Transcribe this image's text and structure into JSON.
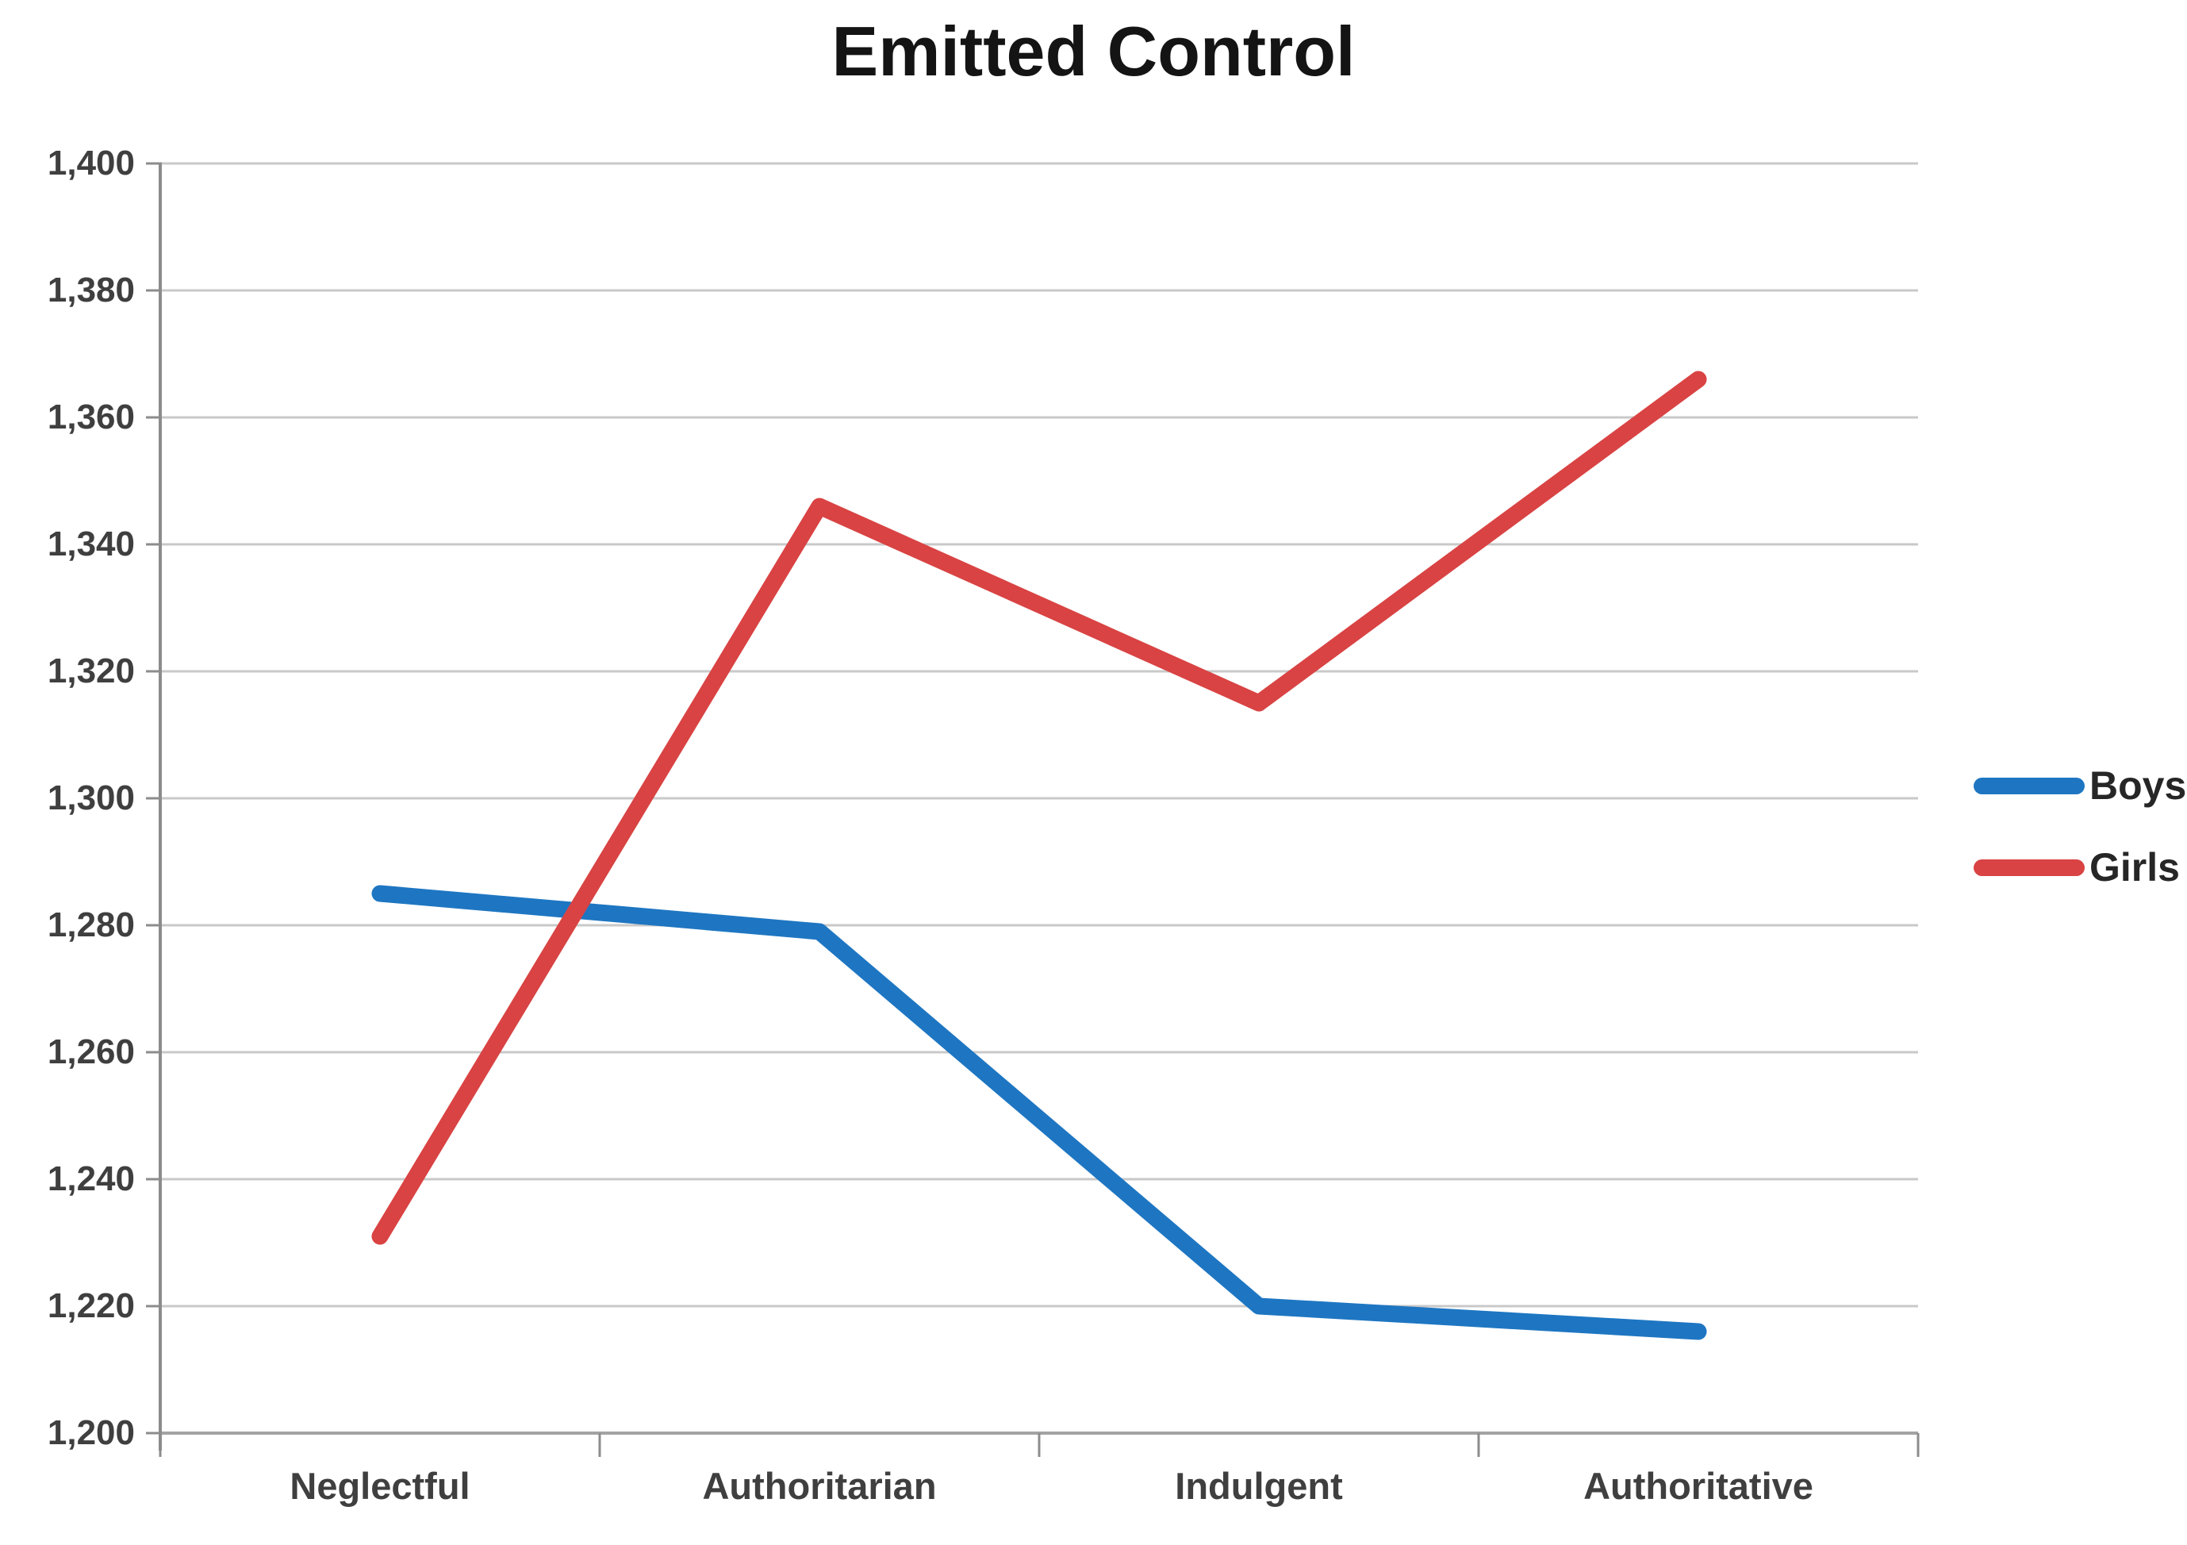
{
  "chart_data": {
    "type": "line",
    "title": "Emitted Control",
    "categories": [
      "Neglectful",
      "Authoritarian",
      "Indulgent",
      "Authoritative"
    ],
    "series": [
      {
        "name": "Boys",
        "color": "#1E76C2",
        "values": [
          1285,
          1279,
          1220,
          1216
        ]
      },
      {
        "name": "Girls",
        "color": "#D94343",
        "values": [
          1231,
          1346,
          1315,
          1366
        ]
      }
    ],
    "y_axis": {
      "min": 1200,
      "max": 1400,
      "step": 20,
      "tick_labels_top_to_bottom": [
        "1,400",
        "1,380",
        "1,360",
        "1,340",
        "1,320",
        "1,300",
        "1,280",
        "1,260",
        "1,240",
        "1,220",
        "1,200"
      ]
    },
    "x_axis": {
      "label": ""
    },
    "legend_position": "right",
    "grid": true,
    "colors": {
      "gridline": "#C9C9C9",
      "x_axis_line": "#A3A3A3",
      "y_axis_line": "#8C8C8C",
      "tick": "#8C8C8C",
      "title_text": "#141414",
      "axis_label_text": "#3F3F3F",
      "legend_text": "#262626",
      "background": "#FFFFFF"
    }
  }
}
